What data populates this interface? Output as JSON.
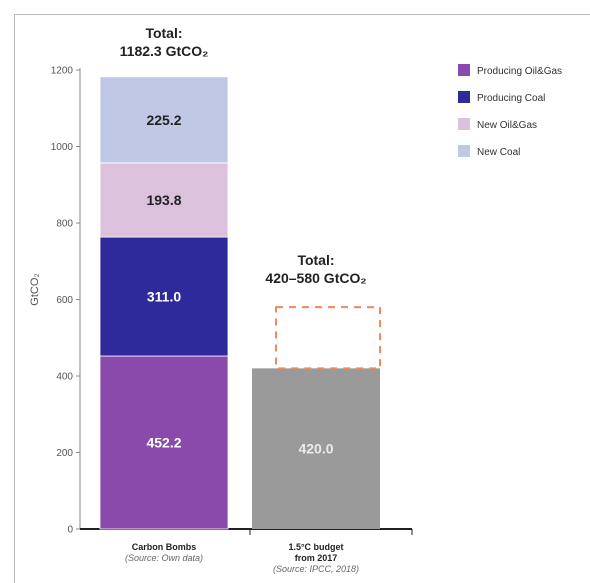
{
  "chart_data": {
    "type": "bar",
    "stacked": true,
    "ylabel": "GtCO₂",
    "ylim": [
      0,
      1200
    ],
    "yticks": [
      0,
      200,
      400,
      600,
      800,
      1000,
      1200
    ],
    "grid": false,
    "legend_position": "top-right",
    "categories": [
      {
        "label": "Carbon Bombs",
        "source": "(Source: Own data)"
      },
      {
        "label": "1.5°C budget\nfrom 2017",
        "source": "(Source: IPCC, 2018)"
      }
    ],
    "series": [
      {
        "name": "Producing Oil&Gas",
        "color": "#8a4aab",
        "label_color": "#ffffff",
        "values": [
          452.2,
          null
        ]
      },
      {
        "name": "Producing Coal",
        "color": "#2f2a9c",
        "label_color": "#ffffff",
        "values": [
          311.0,
          null
        ]
      },
      {
        "name": "New Oil&Gas",
        "color": "#dcc1dd",
        "label_color": "#222222",
        "values": [
          193.8,
          null
        ]
      },
      {
        "name": "New Coal",
        "color": "#c1c8e6",
        "label_color": "#222222",
        "values": [
          225.2,
          null
        ]
      }
    ],
    "budget": {
      "value": 420.0,
      "upper": 580,
      "color": "#9a9a9a",
      "range_color": "#ef8b5a"
    },
    "totals": [
      {
        "label": "Total:",
        "value": "1182.3 GtCO₂"
      },
      {
        "label": "Total:",
        "value": "420–580 GtCO₂"
      }
    ]
  }
}
